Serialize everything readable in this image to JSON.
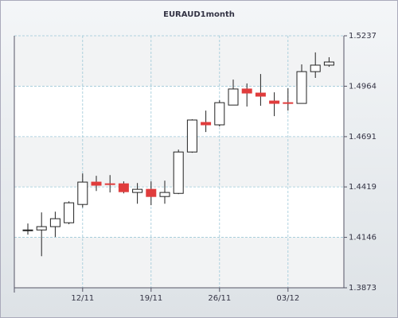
{
  "chart_data": {
    "type": "candlestick",
    "title": "EURAUD1month",
    "categories": [
      null,
      null,
      null,
      null,
      "12/11",
      null,
      null,
      null,
      null,
      "19/11",
      null,
      null,
      null,
      null,
      "26/11",
      null,
      null,
      null,
      null,
      "03/12",
      null,
      null,
      null
    ],
    "open": [
      1.4186,
      1.4186,
      1.4204,
      1.4225,
      1.4324,
      1.4445,
      1.4436,
      1.4436,
      1.4389,
      1.4406,
      1.4367,
      1.4384,
      1.4608,
      1.4768,
      1.4755,
      1.4862,
      1.4949,
      1.4927,
      1.4884,
      1.4875,
      1.4871,
      1.5043,
      1.5078
    ],
    "high": [
      1.4221,
      1.4281,
      1.4285,
      1.4341,
      1.4492,
      1.4479,
      1.4483,
      1.4449,
      1.444,
      1.4449,
      1.4453,
      1.4621,
      1.4785,
      1.4832,
      1.4888,
      1.5,
      1.4979,
      1.503,
      1.4931,
      1.4953,
      1.5082,
      1.5147,
      1.5121
    ],
    "low": [
      1.4161,
      1.4044,
      1.4148,
      1.4217,
      1.4307,
      1.4397,
      1.4389,
      1.4384,
      1.4328,
      1.432,
      1.4328,
      1.438,
      1.4604,
      1.4716,
      1.4746,
      1.4862,
      1.4854,
      1.4858,
      1.4802,
      1.4832,
      1.4871,
      1.5009,
      1.5069
    ],
    "close": [
      1.4186,
      1.4204,
      1.4247,
      1.4333,
      1.4445,
      1.4428,
      1.4432,
      1.4393,
      1.4406,
      1.4367,
      1.4389,
      1.4608,
      1.4781,
      1.4755,
      1.4875,
      1.4949,
      1.4927,
      1.491,
      1.4871,
      1.4871,
      1.5043,
      1.5078,
      1.5095
    ],
    "up_color": "#ffffff",
    "down_color": "#e03c3c",
    "ylim": [
      1.3873,
      1.5237
    ],
    "yticks": [
      1.3873,
      1.4146,
      1.4419,
      1.4691,
      1.4964,
      1.5237
    ],
    "grid": true
  }
}
